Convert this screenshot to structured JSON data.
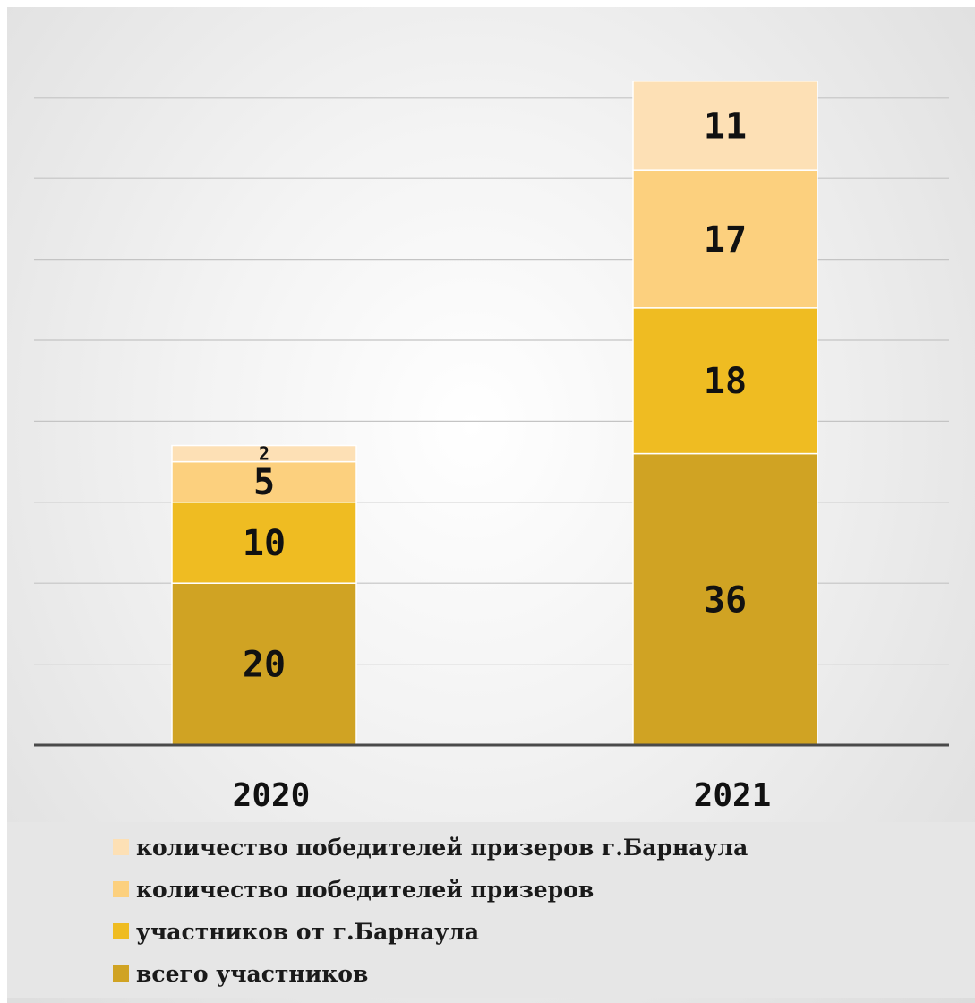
{
  "chart_data": {
    "type": "bar",
    "stacked": true,
    "categories": [
      "2020",
      "2021"
    ],
    "series": [
      {
        "name": "всего участников",
        "values": [
          20,
          36
        ],
        "color": "#d0a323"
      },
      {
        "name": "участников от г.Барнаула",
        "values": [
          10,
          18
        ],
        "color": "#efbc22"
      },
      {
        "name": "количество победителей призеров",
        "values": [
          5,
          17
        ],
        "color": "#fcd07e"
      },
      {
        "name": "количество победителей призеров г.Барнаула",
        "values": [
          2,
          11
        ],
        "color": "#fde0b5"
      }
    ],
    "ylim": [
      0,
      82
    ],
    "grid": true,
    "legend_position": "bottom",
    "title": "",
    "xlabel": "",
    "ylabel": ""
  },
  "legend_order": [
    3,
    2,
    1,
    0
  ]
}
